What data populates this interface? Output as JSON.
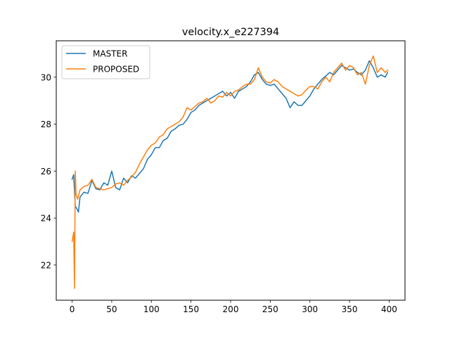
{
  "chart_data": {
    "type": "line",
    "title": "velocity.x_e227394",
    "xlabel": "",
    "ylabel": "",
    "xlim": [
      -20,
      420
    ],
    "ylim": [
      20.5,
      31.55
    ],
    "xticks": [
      0,
      50,
      100,
      150,
      200,
      250,
      300,
      350,
      400
    ],
    "yticks": [
      22,
      24,
      26,
      28,
      30
    ],
    "legend": {
      "placement": "top-left"
    },
    "grid": false,
    "series": [
      {
        "name": "MASTER",
        "color": "#1f77b4",
        "points": [
          [
            0,
            25.65
          ],
          [
            2,
            25.85
          ],
          [
            4,
            24.5
          ],
          [
            6,
            24.4
          ],
          [
            8,
            24.25
          ],
          [
            10,
            24.9
          ],
          [
            15,
            25.1
          ],
          [
            20,
            25.05
          ],
          [
            25,
            25.6
          ],
          [
            30,
            25.25
          ],
          [
            35,
            25.2
          ],
          [
            40,
            25.5
          ],
          [
            45,
            25.4
          ],
          [
            50,
            26.0
          ],
          [
            55,
            25.3
          ],
          [
            60,
            25.2
          ],
          [
            65,
            25.7
          ],
          [
            70,
            25.5
          ],
          [
            75,
            25.8
          ],
          [
            80,
            25.7
          ],
          [
            85,
            25.9
          ],
          [
            90,
            26.1
          ],
          [
            95,
            26.5
          ],
          [
            100,
            26.7
          ],
          [
            105,
            27.0
          ],
          [
            110,
            27.0
          ],
          [
            115,
            27.3
          ],
          [
            120,
            27.4
          ],
          [
            125,
            27.7
          ],
          [
            130,
            27.8
          ],
          [
            135,
            27.95
          ],
          [
            140,
            28.0
          ],
          [
            145,
            28.2
          ],
          [
            150,
            28.5
          ],
          [
            155,
            28.6
          ],
          [
            160,
            28.8
          ],
          [
            165,
            28.9
          ],
          [
            170,
            29.0
          ],
          [
            175,
            29.1
          ],
          [
            180,
            29.2
          ],
          [
            185,
            29.3
          ],
          [
            190,
            29.4
          ],
          [
            195,
            29.2
          ],
          [
            200,
            29.35
          ],
          [
            205,
            29.1
          ],
          [
            210,
            29.4
          ],
          [
            215,
            29.5
          ],
          [
            220,
            29.6
          ],
          [
            225,
            29.8
          ],
          [
            230,
            30.1
          ],
          [
            235,
            30.2
          ],
          [
            240,
            29.9
          ],
          [
            245,
            29.7
          ],
          [
            250,
            29.65
          ],
          [
            255,
            29.7
          ],
          [
            260,
            29.5
          ],
          [
            265,
            29.3
          ],
          [
            270,
            29.1
          ],
          [
            275,
            28.7
          ],
          [
            280,
            28.95
          ],
          [
            285,
            28.8
          ],
          [
            290,
            28.8
          ],
          [
            295,
            29.0
          ],
          [
            300,
            29.2
          ],
          [
            305,
            29.5
          ],
          [
            310,
            29.7
          ],
          [
            315,
            29.9
          ],
          [
            320,
            30.05
          ],
          [
            325,
            30.2
          ],
          [
            330,
            30.1
          ],
          [
            335,
            30.3
          ],
          [
            340,
            30.5
          ],
          [
            345,
            30.4
          ],
          [
            350,
            30.3
          ],
          [
            355,
            30.35
          ],
          [
            360,
            30.2
          ],
          [
            365,
            30.1
          ],
          [
            370,
            30.3
          ],
          [
            375,
            30.7
          ],
          [
            380,
            30.4
          ],
          [
            385,
            30.0
          ],
          [
            390,
            30.1
          ],
          [
            395,
            30.0
          ],
          [
            398,
            30.2
          ]
        ]
      },
      {
        "name": "PROPOSED",
        "color": "#ff7f0e",
        "points": [
          [
            0,
            23.0
          ],
          [
            1,
            23.2
          ],
          [
            2,
            23.4
          ],
          [
            3,
            21.0
          ],
          [
            4,
            26.0
          ],
          [
            5,
            25.0
          ],
          [
            7,
            24.8
          ],
          [
            10,
            25.2
          ],
          [
            15,
            25.35
          ],
          [
            20,
            25.4
          ],
          [
            25,
            25.65
          ],
          [
            30,
            25.3
          ],
          [
            35,
            25.25
          ],
          [
            40,
            25.2
          ],
          [
            45,
            25.25
          ],
          [
            50,
            25.3
          ],
          [
            55,
            25.45
          ],
          [
            60,
            25.5
          ],
          [
            65,
            25.4
          ],
          [
            70,
            25.6
          ],
          [
            75,
            25.75
          ],
          [
            80,
            25.95
          ],
          [
            85,
            26.3
          ],
          [
            90,
            26.6
          ],
          [
            95,
            26.9
          ],
          [
            100,
            27.1
          ],
          [
            105,
            27.2
          ],
          [
            110,
            27.45
          ],
          [
            115,
            27.55
          ],
          [
            120,
            27.8
          ],
          [
            125,
            27.9
          ],
          [
            130,
            28.0
          ],
          [
            135,
            28.1
          ],
          [
            140,
            28.3
          ],
          [
            145,
            28.7
          ],
          [
            150,
            28.6
          ],
          [
            155,
            28.75
          ],
          [
            160,
            28.9
          ],
          [
            165,
            28.95
          ],
          [
            170,
            29.1
          ],
          [
            175,
            28.9
          ],
          [
            180,
            29.0
          ],
          [
            185,
            29.2
          ],
          [
            190,
            29.15
          ],
          [
            195,
            29.35
          ],
          [
            200,
            29.2
          ],
          [
            205,
            29.4
          ],
          [
            210,
            29.45
          ],
          [
            215,
            29.6
          ],
          [
            220,
            29.7
          ],
          [
            225,
            29.7
          ],
          [
            230,
            29.9
          ],
          [
            235,
            30.4
          ],
          [
            240,
            30.0
          ],
          [
            245,
            29.8
          ],
          [
            250,
            29.75
          ],
          [
            255,
            29.9
          ],
          [
            260,
            29.8
          ],
          [
            265,
            29.6
          ],
          [
            270,
            29.5
          ],
          [
            275,
            29.4
          ],
          [
            280,
            29.3
          ],
          [
            285,
            29.2
          ],
          [
            290,
            29.25
          ],
          [
            295,
            29.45
          ],
          [
            300,
            29.6
          ],
          [
            305,
            29.6
          ],
          [
            310,
            29.5
          ],
          [
            315,
            29.8
          ],
          [
            320,
            30.0
          ],
          [
            325,
            29.8
          ],
          [
            330,
            30.2
          ],
          [
            335,
            30.4
          ],
          [
            340,
            30.6
          ],
          [
            345,
            30.3
          ],
          [
            350,
            30.5
          ],
          [
            355,
            30.4
          ],
          [
            360,
            30.1
          ],
          [
            365,
            30.2
          ],
          [
            370,
            29.7
          ],
          [
            375,
            30.5
          ],
          [
            380,
            30.9
          ],
          [
            385,
            30.2
          ],
          [
            390,
            30.4
          ],
          [
            395,
            30.2
          ],
          [
            398,
            30.3
          ]
        ]
      }
    ]
  }
}
